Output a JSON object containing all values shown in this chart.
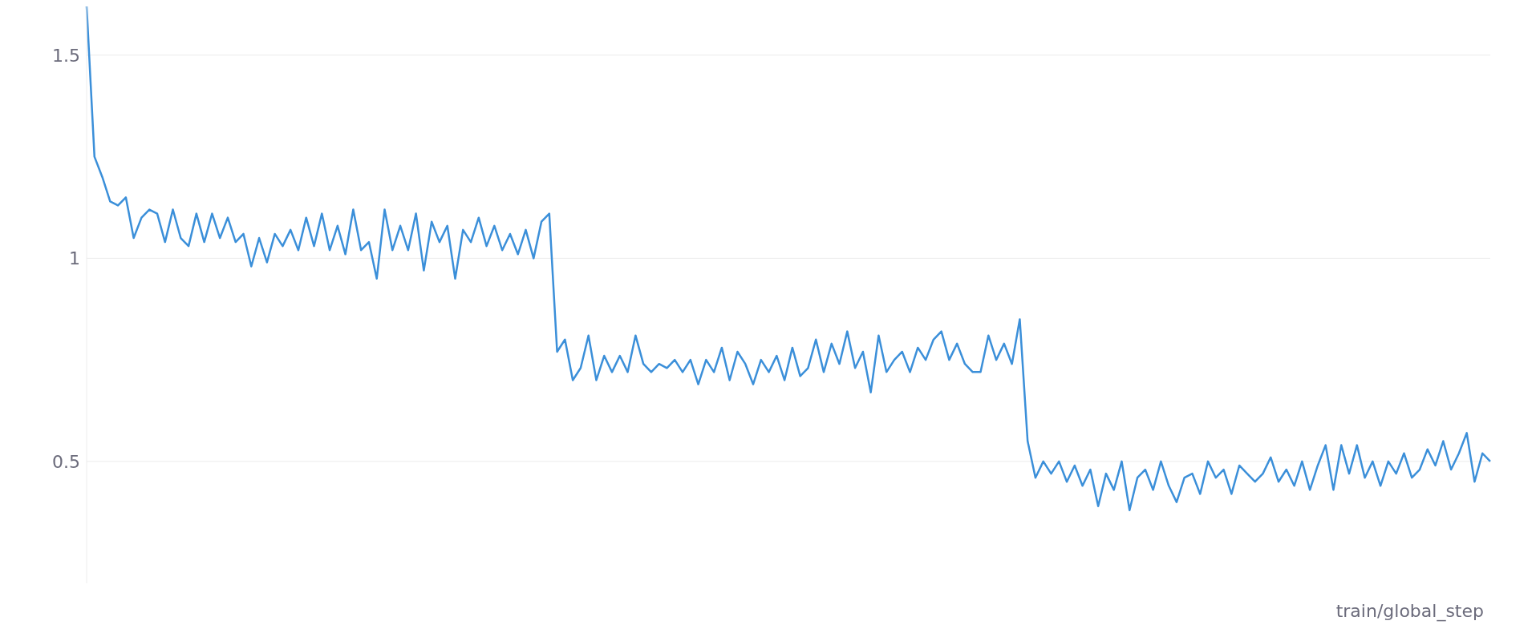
{
  "chart_data": {
    "type": "line",
    "xlabel": "train/global_step",
    "categories": [
      null,
      null,
      null,
      null,
      null,
      null,
      null,
      null,
      null,
      null,
      null,
      null,
      null,
      null,
      null,
      null,
      null,
      null,
      null,
      null,
      null,
      null,
      null,
      null,
      null,
      null,
      null,
      null,
      null,
      null,
      null,
      null,
      null,
      null,
      null,
      null,
      null,
      null,
      null,
      null,
      null,
      null,
      null,
      null,
      null,
      null,
      null,
      null,
      null,
      null,
      null,
      null,
      null,
      null,
      null,
      null,
      null,
      null,
      null,
      null,
      null,
      null,
      null,
      null,
      null,
      null,
      null,
      null,
      null,
      null,
      null,
      null,
      null,
      null,
      null,
      null,
      null,
      null,
      null,
      null,
      null,
      null,
      null,
      null,
      null,
      null,
      null,
      null,
      null,
      null,
      null,
      null,
      null,
      null,
      null,
      null,
      null,
      null,
      null,
      null,
      null,
      null,
      null,
      null,
      null,
      null,
      null,
      null,
      null,
      null,
      null,
      null,
      null,
      null,
      null,
      null,
      null,
      null,
      null,
      null,
      null,
      null,
      null,
      null,
      null,
      null,
      null,
      null,
      null,
      null,
      null,
      null,
      null,
      null,
      null,
      null,
      null,
      null,
      null,
      null,
      null,
      null,
      null,
      null,
      null,
      null,
      null,
      null,
      null,
      null,
      null,
      null,
      null,
      null,
      null,
      null,
      null,
      null,
      null,
      null,
      null,
      null,
      null,
      null,
      null,
      null,
      null,
      null,
      null,
      null,
      null,
      null,
      null,
      null,
      null,
      null,
      null,
      null,
      null,
      null
    ],
    "series": [
      {
        "color": "#3b8fd9",
        "values": [
          1.62,
          1.25,
          1.2,
          1.14,
          1.13,
          1.15,
          1.05,
          1.1,
          1.12,
          1.11,
          1.04,
          1.12,
          1.05,
          1.03,
          1.11,
          1.04,
          1.11,
          1.05,
          1.1,
          1.04,
          1.06,
          0.98,
          1.05,
          0.99,
          1.06,
          1.03,
          1.07,
          1.02,
          1.1,
          1.03,
          1.11,
          1.02,
          1.08,
          1.01,
          1.12,
          1.02,
          1.04,
          0.95,
          1.12,
          1.02,
          1.08,
          1.02,
          1.11,
          0.97,
          1.09,
          1.04,
          1.08,
          0.95,
          1.07,
          1.04,
          1.1,
          1.03,
          1.08,
          1.02,
          1.06,
          1.01,
          1.07,
          1.0,
          1.09,
          1.11,
          0.77,
          0.8,
          0.7,
          0.73,
          0.81,
          0.7,
          0.76,
          0.72,
          0.76,
          0.72,
          0.81,
          0.74,
          0.72,
          0.74,
          0.73,
          0.75,
          0.72,
          0.75,
          0.69,
          0.75,
          0.72,
          0.78,
          0.7,
          0.77,
          0.74,
          0.69,
          0.75,
          0.72,
          0.76,
          0.7,
          0.78,
          0.71,
          0.73,
          0.8,
          0.72,
          0.79,
          0.74,
          0.82,
          0.73,
          0.77,
          0.67,
          0.81,
          0.72,
          0.75,
          0.77,
          0.72,
          0.78,
          0.75,
          0.8,
          0.82,
          0.75,
          0.79,
          0.74,
          0.72,
          0.72,
          0.81,
          0.75,
          0.79,
          0.74,
          0.85,
          0.55,
          0.46,
          0.5,
          0.47,
          0.5,
          0.45,
          0.49,
          0.44,
          0.48,
          0.39,
          0.47,
          0.43,
          0.5,
          0.38,
          0.46,
          0.48,
          0.43,
          0.5,
          0.44,
          0.4,
          0.46,
          0.47,
          0.42,
          0.5,
          0.46,
          0.48,
          0.42,
          0.49,
          0.47,
          0.45,
          0.47,
          0.51,
          0.45,
          0.48,
          0.44,
          0.5,
          0.43,
          0.49,
          0.54,
          0.43,
          0.54,
          0.47,
          0.54,
          0.46,
          0.5,
          0.44,
          0.5,
          0.47,
          0.52,
          0.46,
          0.48,
          0.53,
          0.49,
          0.55,
          0.48,
          0.52,
          0.57,
          0.45,
          0.52,
          0.5
        ]
      }
    ],
    "ylim": [
      0.2,
      1.62
    ],
    "yticks": [
      0.5,
      1,
      1.5
    ],
    "grid": "y",
    "marker": "none",
    "line_style": "solid"
  }
}
